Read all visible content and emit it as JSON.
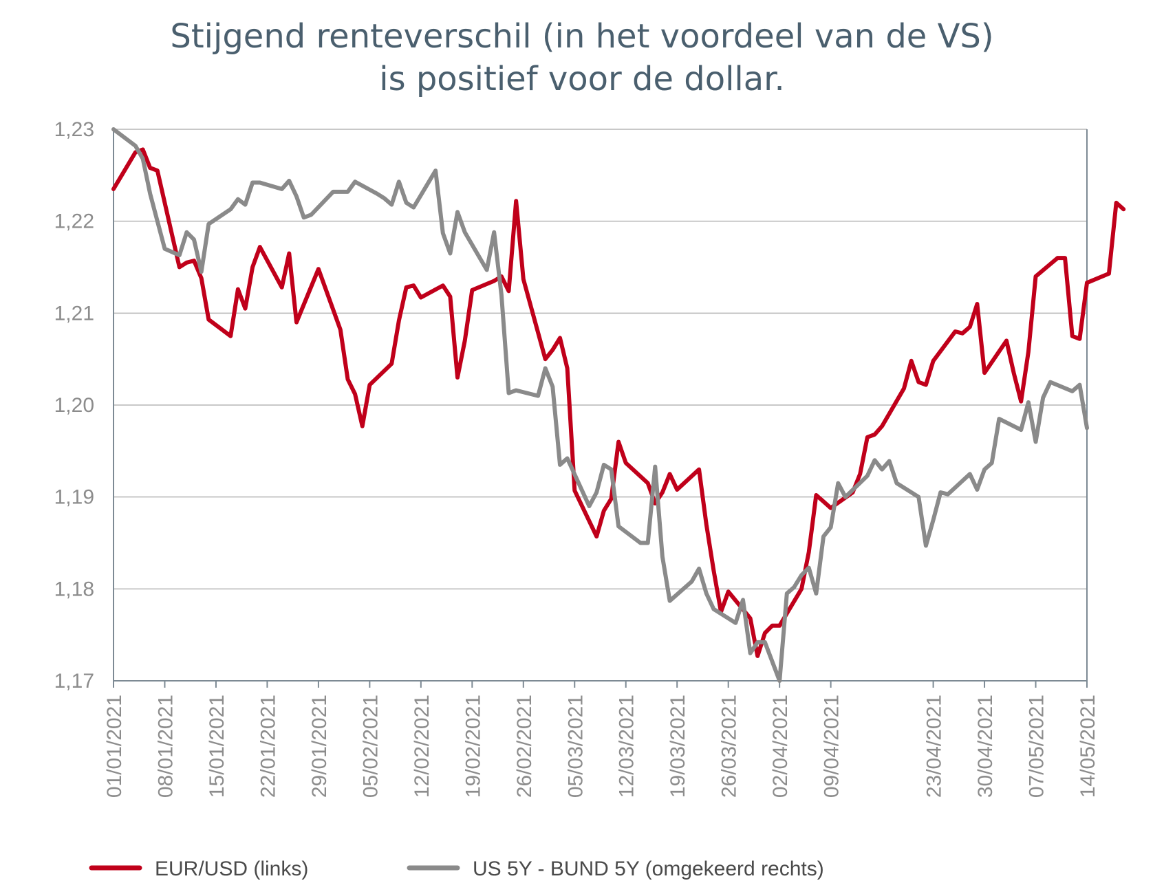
{
  "title_line1": "Stijgend renteverschil (in het voordeel van de VS)",
  "title_line2": "is positief voor de dollar.",
  "colors": {
    "eurusd": "#c0001a",
    "spread": "#8a8a8a",
    "grid": "#b5b5b5",
    "axis": "#7d8a94"
  },
  "chart_data": {
    "type": "line",
    "title": "Stijgend renteverschil (in het voordeel van de VS) is positief voor de dollar.",
    "ylim": [
      1.17,
      1.23
    ],
    "yticks": [
      "1,23",
      "1,22",
      "1,21",
      "1,20",
      "1,19",
      "1,18",
      "1,17"
    ],
    "xlim": [
      "01/01/2021",
      "14/05/2021"
    ],
    "xticks": [
      "01/01/2021",
      "08/01/2021",
      "15/01/2021",
      "22/01/2021",
      "29/01/2021",
      "05/02/2021",
      "12/02/2021",
      "19/02/2021",
      "26/02/2021",
      "05/03/2021",
      "12/03/2021",
      "19/03/2021",
      "26/03/2021",
      "02/04/2021",
      "09/04/2021",
      "23/04/2021",
      "30/04/2021",
      "07/05/2021",
      "14/05/2021"
    ],
    "grid": "horizontal",
    "legend_position": "bottom",
    "series": [
      {
        "name": "EUR/USD (links)",
        "axis": "left",
        "points": [
          [
            0,
            1.2235
          ],
          [
            3,
            1.2275
          ],
          [
            4,
            1.2278
          ],
          [
            5,
            1.2258
          ],
          [
            6,
            1.2255
          ],
          [
            9,
            1.215
          ],
          [
            10,
            1.2155
          ],
          [
            11,
            1.2157
          ],
          [
            12,
            1.2138
          ],
          [
            13,
            1.2093
          ],
          [
            16,
            1.2075
          ],
          [
            17,
            1.2126
          ],
          [
            18,
            1.2105
          ],
          [
            19,
            1.215
          ],
          [
            20,
            1.2172
          ],
          [
            23,
            1.2128
          ],
          [
            24,
            1.2165
          ],
          [
            25,
            1.209
          ],
          [
            28,
            1.2148
          ],
          [
            31,
            1.2082
          ],
          [
            32,
            1.2028
          ],
          [
            33,
            1.2012
          ],
          [
            34,
            1.1977
          ],
          [
            35,
            1.2022
          ],
          [
            38,
            1.2045
          ],
          [
            39,
            1.2092
          ],
          [
            40,
            1.2128
          ],
          [
            41,
            1.213
          ],
          [
            42,
            1.2117
          ],
          [
            45,
            1.213
          ],
          [
            46,
            1.2118
          ],
          [
            47,
            1.203
          ],
          [
            48,
            1.207
          ],
          [
            49,
            1.2125
          ],
          [
            52,
            1.2135
          ],
          [
            53,
            1.214
          ],
          [
            54,
            1.2124
          ],
          [
            55,
            1.2222
          ],
          [
            56,
            1.2137
          ],
          [
            59,
            1.205
          ],
          [
            60,
            1.206
          ],
          [
            61,
            1.2073
          ],
          [
            62,
            1.204
          ],
          [
            63,
            1.1907
          ],
          [
            66,
            1.1857
          ],
          [
            67,
            1.1885
          ],
          [
            68,
            1.1898
          ],
          [
            69,
            1.196
          ],
          [
            70,
            1.1937
          ],
          [
            73,
            1.1915
          ],
          [
            74,
            1.1893
          ],
          [
            75,
            1.1905
          ],
          [
            76,
            1.1925
          ],
          [
            77,
            1.1908
          ],
          [
            80,
            1.193
          ],
          [
            81,
            1.187
          ],
          [
            82,
            1.182
          ],
          [
            83,
            1.1775
          ],
          [
            84,
            1.1797
          ],
          [
            87,
            1.1768
          ],
          [
            88,
            1.1727
          ],
          [
            89,
            1.1752
          ],
          [
            90,
            1.176
          ],
          [
            91,
            1.176
          ],
          [
            94,
            1.18
          ],
          [
            95,
            1.184
          ],
          [
            96,
            1.1902
          ],
          [
            97,
            1.1895
          ],
          [
            98,
            1.1888
          ],
          [
            101,
            1.1905
          ],
          [
            102,
            1.1925
          ],
          [
            103,
            1.1965
          ],
          [
            104,
            1.1968
          ],
          [
            105,
            1.1977
          ],
          [
            108,
            1.2018
          ],
          [
            109,
            1.2048
          ],
          [
            110,
            1.2025
          ],
          [
            111,
            1.2022
          ],
          [
            112,
            1.2048
          ],
          [
            115,
            1.208
          ],
          [
            116,
            1.2078
          ],
          [
            117,
            1.2085
          ],
          [
            118,
            1.211
          ],
          [
            119,
            1.2035
          ],
          [
            122,
            1.207
          ],
          [
            123,
            1.2035
          ],
          [
            124,
            1.2004
          ],
          [
            125,
            1.2058
          ],
          [
            126,
            1.214
          ],
          [
            129,
            1.216
          ],
          [
            130,
            1.216
          ],
          [
            131,
            1.2075
          ],
          [
            132,
            1.2072
          ],
          [
            133,
            1.2133
          ],
          [
            136,
            1.2143
          ],
          [
            137,
            1.222
          ],
          [
            138,
            1.2213
          ]
        ]
      },
      {
        "name": "US 5Y - BUND 5Y (omgekeerd rechts)",
        "axis": "right",
        "points": [
          [
            0,
            1.23
          ],
          [
            3,
            1.2282
          ],
          [
            4,
            1.2268
          ],
          [
            5,
            1.223
          ],
          [
            6,
            1.22
          ],
          [
            7,
            1.217
          ],
          [
            9,
            1.2163
          ],
          [
            10,
            1.2188
          ],
          [
            11,
            1.218
          ],
          [
            12,
            1.2145
          ],
          [
            13,
            1.2197
          ],
          [
            16,
            1.2213
          ],
          [
            17,
            1.2224
          ],
          [
            18,
            1.2218
          ],
          [
            19,
            1.2242
          ],
          [
            20,
            1.2242
          ],
          [
            23,
            1.2235
          ],
          [
            24,
            1.2244
          ],
          [
            25,
            1.2227
          ],
          [
            26,
            1.2204
          ],
          [
            27,
            1.2207
          ],
          [
            30,
            1.2232
          ],
          [
            31,
            1.2232
          ],
          [
            32,
            1.2232
          ],
          [
            33,
            1.2243
          ],
          [
            36,
            1.223
          ],
          [
            37,
            1.2225
          ],
          [
            38,
            1.2218
          ],
          [
            39,
            1.2243
          ],
          [
            40,
            1.222
          ],
          [
            41,
            1.2215
          ],
          [
            44,
            1.2255
          ],
          [
            45,
            1.2187
          ],
          [
            46,
            1.2165
          ],
          [
            47,
            1.221
          ],
          [
            48,
            1.2188
          ],
          [
            51,
            1.2147
          ],
          [
            52,
            1.2188
          ],
          [
            53,
            1.212
          ],
          [
            54,
            1.2013
          ],
          [
            55,
            1.2016
          ],
          [
            58,
            1.201
          ],
          [
            59,
            1.204
          ],
          [
            60,
            1.202
          ],
          [
            61,
            1.1935
          ],
          [
            62,
            1.1942
          ],
          [
            65,
            1.189
          ],
          [
            66,
            1.1905
          ],
          [
            67,
            1.1935
          ],
          [
            68,
            1.193
          ],
          [
            69,
            1.1868
          ],
          [
            72,
            1.185
          ],
          [
            73,
            1.185
          ],
          [
            74,
            1.1933
          ],
          [
            75,
            1.1835
          ],
          [
            76,
            1.1787
          ],
          [
            79,
            1.1808
          ],
          [
            80,
            1.1822
          ],
          [
            81,
            1.1795
          ],
          [
            82,
            1.1778
          ],
          [
            85,
            1.1763
          ],
          [
            86,
            1.1788
          ],
          [
            87,
            1.173
          ],
          [
            88,
            1.1742
          ],
          [
            89,
            1.1742
          ],
          [
            91,
            1.17
          ],
          [
            92,
            1.1795
          ],
          [
            93,
            1.1802
          ],
          [
            94,
            1.1815
          ],
          [
            95,
            1.1823
          ],
          [
            96,
            1.1795
          ],
          [
            97,
            1.1857
          ],
          [
            98,
            1.1867
          ],
          [
            99,
            1.1915
          ],
          [
            100,
            1.19
          ],
          [
            103,
            1.1923
          ],
          [
            104,
            1.194
          ],
          [
            105,
            1.193
          ],
          [
            106,
            1.1939
          ],
          [
            107,
            1.1915
          ],
          [
            110,
            1.19
          ],
          [
            111,
            1.1847
          ],
          [
            112,
            1.1875
          ],
          [
            113,
            1.1905
          ],
          [
            114,
            1.1903
          ],
          [
            117,
            1.1925
          ],
          [
            118,
            1.1908
          ],
          [
            119,
            1.193
          ],
          [
            120,
            1.1937
          ],
          [
            121,
            1.1985
          ],
          [
            124,
            1.1973
          ],
          [
            125,
            1.2003
          ],
          [
            126,
            1.196
          ],
          [
            127,
            1.2008
          ],
          [
            128,
            1.2025
          ],
          [
            131,
            1.2015
          ],
          [
            132,
            1.2022
          ],
          [
            133,
            1.1975
          ]
        ]
      }
    ]
  }
}
